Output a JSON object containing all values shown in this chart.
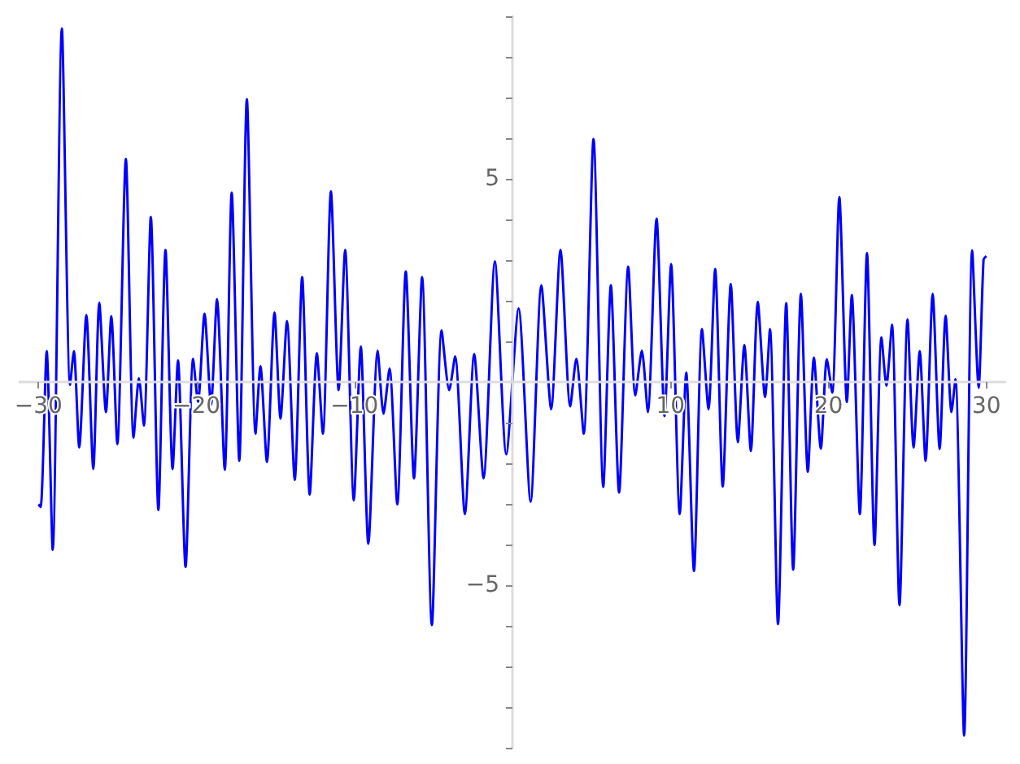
{
  "chart_data": {
    "type": "line",
    "x": [
      -30.0,
      -29.86,
      -29.48,
      -29.1,
      -28.52,
      -28.0,
      -27.76,
      -27.42,
      -26.97,
      -26.53,
      -26.15,
      -25.73,
      -25.39,
      -25.01,
      -24.47,
      -23.98,
      -23.64,
      -23.33,
      -22.89,
      -22.41,
      -21.96,
      -21.51,
      -21.17,
      -20.69,
      -20.21,
      -19.9,
      -19.49,
      -19.08,
      -18.7,
      -18.21,
      -17.77,
      -17.29,
      -16.81,
      -16.26,
      -15.95,
      -15.54,
      -15.06,
      -14.68,
      -14.27,
      -13.78,
      -13.31,
      -12.83,
      -12.38,
      -12.0,
      -11.49,
      -11.0,
      -10.59,
      -10.04,
      -9.6,
      -9.12,
      -8.53,
      -8.16,
      -7.78,
      -7.29,
      -6.75,
      -6.23,
      -5.72,
      -5.1,
      -4.48,
      -4.0,
      -3.63,
      -3.01,
      -2.42,
      -1.83,
      -1.11,
      -0.39,
      0.39,
      1.15,
      1.83,
      2.45,
      3.04,
      3.66,
      4.04,
      4.51,
      5.13,
      5.75,
      6.23,
      6.75,
      7.33,
      7.78,
      8.19,
      8.57,
      9.12,
      9.63,
      10.04,
      10.59,
      11.0,
      11.49,
      12.0,
      12.41,
      12.83,
      13.31,
      13.82,
      14.27,
      14.68,
      15.09,
      15.53,
      15.99,
      16.3,
      16.81,
      17.33,
      17.77,
      18.26,
      18.7,
      19.08,
      19.52,
      19.9,
      20.24,
      20.69,
      21.17,
      21.48,
      21.99,
      22.44,
      22.92,
      23.36,
      23.67,
      24.02,
      24.5,
      25.01,
      25.39,
      25.78,
      26.15,
      26.6,
      27.04,
      27.42,
      27.79,
      28.04,
      28.59,
      29.1,
      29.51,
      29.82,
      30.0
    ],
    "series": [
      {
        "color": "#0000ff",
        "values": [
          -3.01,
          -3.08,
          0.76,
          -4.13,
          8.7,
          -0.07,
          0.76,
          -1.61,
          1.65,
          -2.14,
          1.95,
          -0.74,
          1.62,
          -1.53,
          5.49,
          -1.37,
          0.09,
          -1.07,
          4.06,
          -3.15,
          3.25,
          -2.14,
          0.53,
          -4.55,
          0.57,
          -0.49,
          1.68,
          -0.57,
          2.04,
          -2.16,
          4.66,
          -1.94,
          6.96,
          -1.27,
          0.39,
          -1.97,
          1.71,
          -0.9,
          1.5,
          -2.41,
          2.58,
          -2.77,
          0.71,
          -1.27,
          4.69,
          -0.2,
          3.25,
          -2.91,
          0.87,
          -3.98,
          0.77,
          -0.78,
          0.33,
          -3.01,
          2.72,
          -2.37,
          2.58,
          -5.98,
          1.27,
          -0.2,
          0.63,
          -3.25,
          0.69,
          -2.37,
          2.97,
          -1.78,
          1.81,
          -2.95,
          2.38,
          -0.67,
          3.25,
          -0.6,
          0.57,
          -1.27,
          5.98,
          -2.58,
          2.38,
          -2.72,
          2.84,
          -0.33,
          0.77,
          -0.74,
          4.02,
          -0.84,
          2.9,
          -3.25,
          0.23,
          -4.65,
          1.3,
          -0.67,
          2.78,
          -2.57,
          2.41,
          -1.48,
          0.91,
          -1.7,
          1.97,
          -0.37,
          1.3,
          -5.96,
          1.94,
          -4.62,
          2.17,
          -2.21,
          0.6,
          -1.64,
          0.56,
          -0.26,
          4.55,
          -0.49,
          2.14,
          -3.25,
          3.17,
          -4.01,
          1.1,
          -0.09,
          1.41,
          -5.49,
          1.54,
          -1.61,
          0.76,
          -1.94,
          2.17,
          -1.65,
          1.63,
          -0.74,
          0.07,
          -8.7,
          3.24,
          -0.14,
          3.01,
          3.1
        ]
      }
    ],
    "xlim": [
      -31.2,
      31.2
    ],
    "ylim": [
      -9,
      9
    ],
    "xticks": [
      {
        "value": -30,
        "label": "−30"
      },
      {
        "value": -20,
        "label": "−20"
      },
      {
        "value": -10,
        "label": "−10"
      },
      10,
      20,
      30
    ],
    "yticks": [
      {
        "value": -9,
        "label": null
      },
      {
        "value": -8,
        "label": null
      },
      {
        "value": -7,
        "label": null
      },
      {
        "value": -6,
        "label": null
      },
      {
        "value": -5,
        "label": "−5"
      },
      {
        "value": -4,
        "label": null
      },
      {
        "value": -3,
        "label": null
      },
      {
        "value": -2,
        "label": null
      },
      {
        "value": -1,
        "label": null
      },
      {
        "value": 1,
        "label": null
      },
      {
        "value": 2,
        "label": null
      },
      {
        "value": 3,
        "label": null
      },
      {
        "value": 4,
        "label": null
      },
      5,
      {
        "value": 6,
        "label": null
      },
      {
        "value": 7,
        "label": null
      },
      {
        "value": 8,
        "label": null
      },
      {
        "value": 9,
        "label": null
      }
    ],
    "grid": false,
    "marker": "none",
    "line_style": "solid"
  }
}
